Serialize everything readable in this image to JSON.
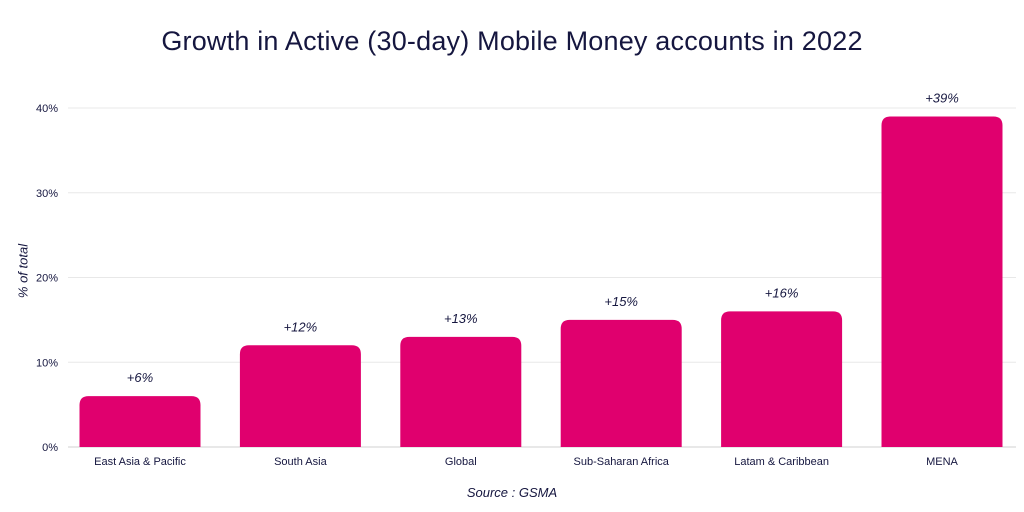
{
  "title": "Growth in Active (30-day) Mobile Money accounts in 2022",
  "source_note": "Source : GSMA",
  "colors": {
    "bar": "#e0006e",
    "grid": "#e8e8e8",
    "text": "#15163f"
  },
  "chart_data": {
    "type": "bar",
    "title": "Growth in Active (30-day) Mobile Money accounts in 2022",
    "xlabel": "",
    "ylabel": "% of total",
    "categories": [
      "East Asia & Pacific",
      "South Asia",
      "Global",
      "Sub-Saharan Africa",
      "Latam & Caribbean",
      "MENA"
    ],
    "values": [
      6,
      12,
      13,
      15,
      16,
      39
    ],
    "data_labels": [
      "+6%",
      "+12%",
      "+13%",
      "+15%",
      "+16%",
      "+39%"
    ],
    "ylim": [
      0,
      40
    ],
    "yticks": [
      0,
      10,
      20,
      30,
      40
    ],
    "ytick_labels": [
      "0%",
      "10%",
      "20%",
      "30%",
      "40%"
    ],
    "grid": true,
    "legend": "none"
  }
}
